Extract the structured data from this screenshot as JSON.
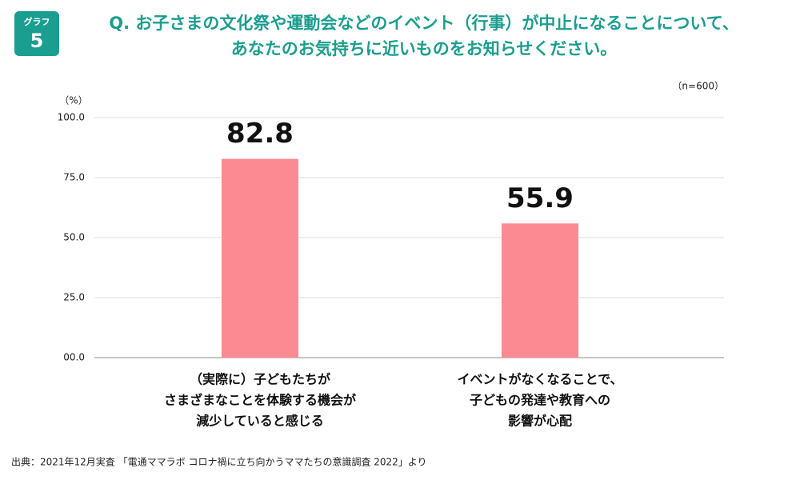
{
  "badge": {
    "label": "グラフ",
    "number": "5"
  },
  "chart_data": {
    "type": "bar",
    "title": [
      "Q. お子さまの文化祭や運動会などのイベント（行事）が中止になることについて、",
      "あなたのお気持ちに近いものをお知らせください。"
    ],
    "sample_note": "（n=600）",
    "y_unit": "（%）",
    "categories": [
      [
        "（実際に）子どもたちが",
        "さまざまなことを体験する機会が",
        "減少していると感じる"
      ],
      [
        "イベントがなくなることで、",
        "子どもの発達や教育への",
        "影響が心配"
      ]
    ],
    "values": [
      82.8,
      55.9
    ],
    "color": "#fb8a93",
    "ylim": [
      0,
      100
    ],
    "yticks": [
      {
        "value": 0,
        "label": "00.0"
      },
      {
        "value": 25,
        "label": "25.0"
      },
      {
        "value": 50,
        "label": "50.0"
      },
      {
        "value": 75,
        "label": "75.0"
      },
      {
        "value": 100,
        "label": "100.0"
      }
    ],
    "grid": true,
    "source": "出典：2021年12月実査 「電通ママラボ コロナ禍に立ち向かうママたちの意識調査 2022」より"
  }
}
